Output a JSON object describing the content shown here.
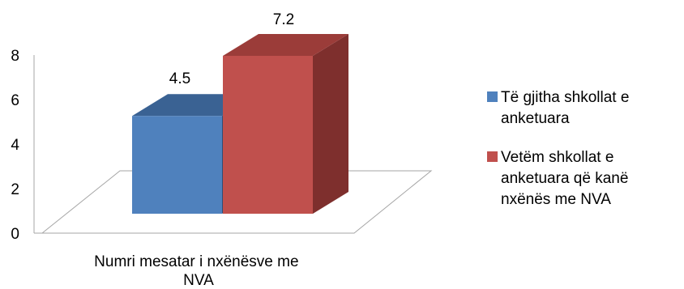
{
  "chart_data": {
    "type": "bar",
    "categories": [
      "Numri mesatar i nxënësve me NVA"
    ],
    "series": [
      {
        "name": "Të gjitha shkollat e anketuara",
        "values": [
          4.5
        ],
        "color": "#4F81BD"
      },
      {
        "name": "Vetëm shkollat e anketuara që kanë nxënës me NVA",
        "values": [
          7.2
        ],
        "color": "#C0504D"
      }
    ],
    "category_label_lines": [
      "Numri mesatar i nxënësve me",
      "NVA"
    ],
    "legend_label_lines": [
      [
        "Të gjitha shkollat e",
        "anketuara"
      ],
      [
        "Vetëm shkollat e",
        "anketuara që kanë",
        "nxënës me NVA"
      ]
    ],
    "y_ticks": [
      "0",
      "2",
      "4",
      "6",
      "8"
    ],
    "data_labels": [
      "4.5",
      "7.2"
    ],
    "ylim": [
      0,
      8
    ],
    "style": "3d",
    "grid": false,
    "legend_position": "right",
    "colors": {
      "series_1_front": "#4F81BD",
      "series_1_top": "#3A6293",
      "series_1_side": "#2E4F78",
      "series_2_front": "#C0504D",
      "series_2_top": "#9B3C39",
      "series_2_side": "#7E2F2D",
      "axis": "#A6A6A6"
    }
  }
}
